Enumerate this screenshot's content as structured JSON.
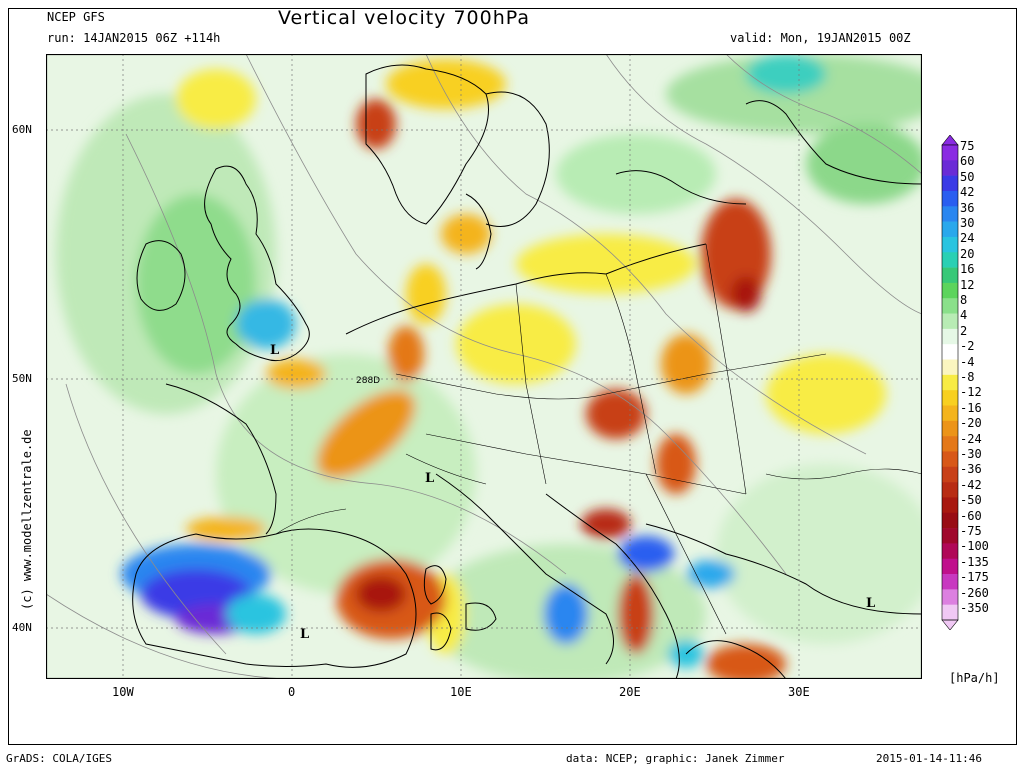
{
  "header": {
    "model": "NCEP GFS",
    "run": "run: 14JAN2015 06Z +114h",
    "title": "Vertical velocity 700hPa",
    "valid": "valid: Mon, 19JAN2015 00Z"
  },
  "map": {
    "lat_labels": [
      "60N",
      "50N",
      "40N"
    ],
    "lon_labels": [
      "10W",
      "0",
      "10E",
      "20E",
      "30E"
    ],
    "pressure_labels": [
      "L",
      "L",
      "L",
      "L"
    ],
    "contour_value": "288D"
  },
  "colorbar": {
    "unit": "[hPa/h]",
    "labels": [
      "75",
      "60",
      "50",
      "42",
      "36",
      "30",
      "24",
      "20",
      "16",
      "12",
      "8",
      "4",
      "2",
      "-2",
      "-4",
      "-8",
      "-12",
      "-16",
      "-20",
      "-24",
      "-30",
      "-36",
      "-42",
      "-50",
      "-60",
      "-75",
      "-100",
      "-135",
      "-175",
      "-260",
      "-350"
    ],
    "colors": [
      "#8a2be2",
      "#6a2bd6",
      "#3a3ae6",
      "#2a5ef0",
      "#2a86f0",
      "#2aa8ec",
      "#2ac4e0",
      "#2ad0b4",
      "#38c878",
      "#5cd45c",
      "#8ae08a",
      "#b8ecb4",
      "#e6f8e6",
      "#ffffff",
      "#fbf6c0",
      "#f8ec44",
      "#f8d020",
      "#f4b41c",
      "#ec9418",
      "#e47818",
      "#d85818",
      "#c84018",
      "#b82c14",
      "#a81810",
      "#980c14",
      "#a0082c",
      "#b00858",
      "#c0108c",
      "#c838c0",
      "#dc80e0",
      "#f0c8f4"
    ]
  },
  "footer": {
    "left": "GrADS: COLA/IGES",
    "data": "data: NCEP; graphic: Janek Zimmer",
    "date": "2015-01-14-11:46",
    "credit": "(c) www.modellzentrale.de"
  }
}
